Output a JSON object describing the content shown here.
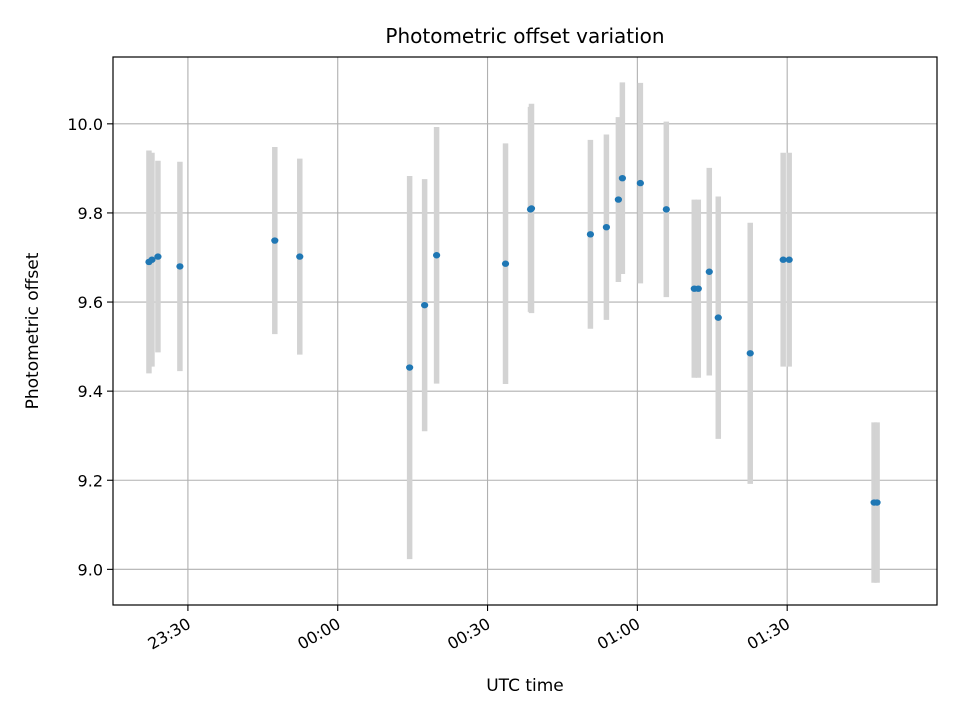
{
  "chart_data": {
    "type": "scatter",
    "title": "Photometric offset variation",
    "xlabel": "UTC time",
    "ylabel": "Photometric offset",
    "x_axis_type": "time",
    "xlim": [
      "23:15",
      "02:00"
    ],
    "ylim": [
      8.92,
      10.15
    ],
    "grid": true,
    "x_ticks": [
      "23:30",
      "00:00",
      "00:30",
      "01:00",
      "01:30"
    ],
    "y_ticks": [
      "9.0",
      "9.2",
      "9.4",
      "9.6",
      "9.8",
      "10.0"
    ],
    "colors": {
      "points": "#1f77b4",
      "errorbars": "#d3d3d3",
      "grid": "#b0b0b0"
    },
    "points": [
      {
        "x": "23:22:12",
        "y": 9.69,
        "yerr": 0.25
      },
      {
        "x": "23:22:48",
        "y": 9.695,
        "yerr": 0.24
      },
      {
        "x": "23:24:00",
        "y": 9.702,
        "yerr": 0.215
      },
      {
        "x": "23:28:24",
        "y": 9.68,
        "yerr": 0.235
      },
      {
        "x": "23:47:24",
        "y": 9.738,
        "yerr": 0.21
      },
      {
        "x": "23:52:24",
        "y": 9.702,
        "yerr": 0.22
      },
      {
        "x": "00:14:24",
        "y": 9.453,
        "yerr": 0.43
      },
      {
        "x": "00:17:24",
        "y": 9.593,
        "yerr": 0.283
      },
      {
        "x": "00:19:48",
        "y": 9.705,
        "yerr": 0.288
      },
      {
        "x": "00:33:36",
        "y": 9.686,
        "yerr": 0.27
      },
      {
        "x": "00:38:36",
        "y": 9.808,
        "yerr": 0.23
      },
      {
        "x": "00:38:48",
        "y": 9.81,
        "yerr": 0.235
      },
      {
        "x": "00:50:36",
        "y": 9.752,
        "yerr": 0.212
      },
      {
        "x": "00:53:48",
        "y": 9.768,
        "yerr": 0.208
      },
      {
        "x": "00:56:12",
        "y": 9.83,
        "yerr": 0.185
      },
      {
        "x": "00:57:00",
        "y": 9.878,
        "yerr": 0.215
      },
      {
        "x": "01:00:36",
        "y": 9.867,
        "yerr": 0.225
      },
      {
        "x": "01:05:48",
        "y": 9.808,
        "yerr": 0.197
      },
      {
        "x": "01:11:24",
        "y": 9.63,
        "yerr": 0.2
      },
      {
        "x": "01:12:12",
        "y": 9.63,
        "yerr": 0.2
      },
      {
        "x": "01:14:24",
        "y": 9.668,
        "yerr": 0.233
      },
      {
        "x": "01:16:12",
        "y": 9.565,
        "yerr": 0.272
      },
      {
        "x": "01:22:36",
        "y": 9.485,
        "yerr": 0.293
      },
      {
        "x": "01:29:12",
        "y": 9.695,
        "yerr": 0.24
      },
      {
        "x": "01:30:24",
        "y": 9.695,
        "yerr": 0.24
      },
      {
        "x": "01:47:24",
        "y": 9.15,
        "yerr": 0.18
      },
      {
        "x": "01:48:00",
        "y": 9.15,
        "yerr": 0.18
      }
    ]
  }
}
